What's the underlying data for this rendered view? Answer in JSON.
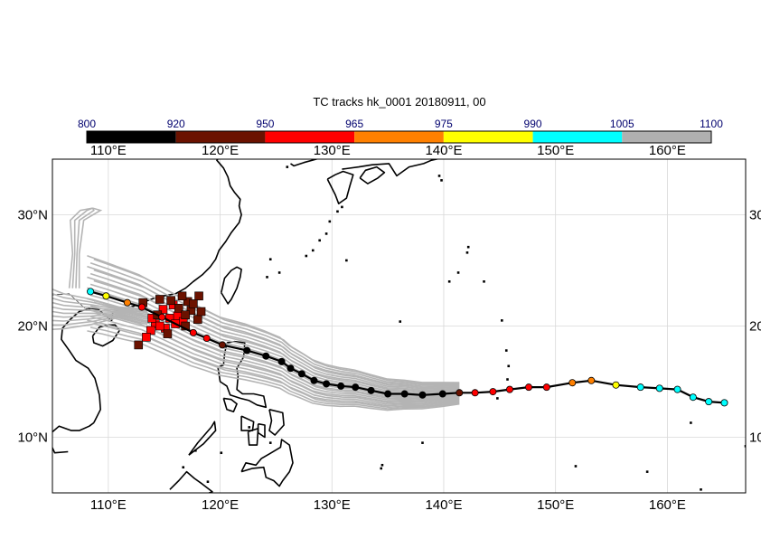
{
  "title": "TC tracks  hk_0001 20180911, 00",
  "colorbar": {
    "ticks": [
      "800",
      "920",
      "950",
      "965",
      "975",
      "990",
      "1005",
      "1100"
    ],
    "colors": [
      "#000000",
      "#6b1200",
      "#ff0000",
      "#ff8000",
      "#ffff00",
      "#00ffff",
      "#b0b0b0"
    ]
  },
  "axes": {
    "lon_labels": [
      "110°E",
      "120°E",
      "130°E",
      "140°E",
      "150°E",
      "160°E"
    ],
    "lat_labels_left": [
      "30°N",
      "20°N",
      "10°N"
    ],
    "lat_labels_right": [
      "30",
      "20",
      "10"
    ],
    "lon_range": [
      105,
      167
    ],
    "lat_range": [
      5,
      35
    ]
  },
  "ensemble_color": "#b4b4b4",
  "main_track": {
    "line_color": "#000000",
    "points": [
      {
        "lon": 165.1,
        "lat": 13.1,
        "c": "cyan"
      },
      {
        "lon": 163.7,
        "lat": 13.2,
        "c": "cyan"
      },
      {
        "lon": 162.3,
        "lat": 13.6,
        "c": "cyan"
      },
      {
        "lon": 160.9,
        "lat": 14.3,
        "c": "cyan"
      },
      {
        "lon": 159.3,
        "lat": 14.4,
        "c": "cyan"
      },
      {
        "lon": 157.6,
        "lat": 14.5,
        "c": "cyan"
      },
      {
        "lon": 155.4,
        "lat": 14.7,
        "c": "yellow"
      },
      {
        "lon": 153.2,
        "lat": 15.1,
        "c": "orange"
      },
      {
        "lon": 151.5,
        "lat": 14.9,
        "c": "orange"
      },
      {
        "lon": 149.2,
        "lat": 14.5,
        "c": "red"
      },
      {
        "lon": 147.6,
        "lat": 14.5,
        "c": "red"
      },
      {
        "lon": 145.9,
        "lat": 14.3,
        "c": "red"
      },
      {
        "lon": 144.4,
        "lat": 14.1,
        "c": "red"
      },
      {
        "lon": 142.8,
        "lat": 14.0,
        "c": "red"
      },
      {
        "lon": 141.4,
        "lat": 14.0,
        "c": "darkred"
      },
      {
        "lon": 139.9,
        "lat": 13.9,
        "c": "black"
      },
      {
        "lon": 138.1,
        "lat": 13.8,
        "c": "black"
      },
      {
        "lon": 136.5,
        "lat": 13.9,
        "c": "black"
      },
      {
        "lon": 135.0,
        "lat": 13.9,
        "c": "black"
      },
      {
        "lon": 133.5,
        "lat": 14.2,
        "c": "black"
      },
      {
        "lon": 132.1,
        "lat": 14.5,
        "c": "black"
      },
      {
        "lon": 130.8,
        "lat": 14.6,
        "c": "black"
      },
      {
        "lon": 129.5,
        "lat": 14.8,
        "c": "black"
      },
      {
        "lon": 128.4,
        "lat": 15.1,
        "c": "black"
      },
      {
        "lon": 127.3,
        "lat": 15.7,
        "c": "black"
      },
      {
        "lon": 126.3,
        "lat": 16.2,
        "c": "black"
      },
      {
        "lon": 125.5,
        "lat": 16.8,
        "c": "black"
      },
      {
        "lon": 124.1,
        "lat": 17.3,
        "c": "black"
      },
      {
        "lon": 122.4,
        "lat": 17.8,
        "c": "black"
      },
      {
        "lon": 120.2,
        "lat": 18.3,
        "c": "darkred"
      },
      {
        "lon": 118.8,
        "lat": 18.9,
        "c": "red"
      },
      {
        "lon": 117.6,
        "lat": 19.4,
        "c": "red"
      },
      {
        "lon": 114.8,
        "lat": 20.8,
        "c": "red"
      },
      {
        "lon": 113.0,
        "lat": 21.7,
        "c": "red"
      },
      {
        "lon": 111.7,
        "lat": 22.1,
        "c": "orange"
      },
      {
        "lon": 109.8,
        "lat": 22.7,
        "c": "yellow"
      },
      {
        "lon": 108.4,
        "lat": 23.1,
        "c": "cyan"
      }
    ]
  },
  "marker_colors": {
    "black": "#000000",
    "darkred": "#6b1200",
    "red": "#ff0000",
    "orange": "#ff8000",
    "yellow": "#ffff00",
    "cyan": "#00ffff",
    "gray": "#b0b0b0"
  },
  "squares": [
    {
      "lon": 115.5,
      "lat": 20.7,
      "c": "red"
    },
    {
      "lon": 116.2,
      "lat": 20.9,
      "c": "red"
    },
    {
      "lon": 114.9,
      "lat": 21.5,
      "c": "red"
    },
    {
      "lon": 115.8,
      "lat": 21.9,
      "c": "red"
    },
    {
      "lon": 116.7,
      "lat": 20.4,
      "c": "red"
    },
    {
      "lon": 114.2,
      "lat": 20.2,
      "c": "red"
    },
    {
      "lon": 113.8,
      "lat": 19.6,
      "c": "red"
    },
    {
      "lon": 113.4,
      "lat": 19.0,
      "c": "red"
    },
    {
      "lon": 113.9,
      "lat": 20.7,
      "c": "red"
    },
    {
      "lon": 115.1,
      "lat": 19.8,
      "c": "red"
    },
    {
      "lon": 116.0,
      "lat": 20.2,
      "c": "red"
    },
    {
      "lon": 114.6,
      "lat": 20.0,
      "c": "red"
    },
    {
      "lon": 117.1,
      "lat": 22.2,
      "c": "darkred"
    },
    {
      "lon": 118.1,
      "lat": 22.7,
      "c": "darkred"
    },
    {
      "lon": 116.6,
      "lat": 22.7,
      "c": "darkred"
    },
    {
      "lon": 117.4,
      "lat": 21.4,
      "c": "darkred"
    },
    {
      "lon": 118.0,
      "lat": 20.6,
      "c": "darkred"
    },
    {
      "lon": 116.9,
      "lat": 20.0,
      "c": "darkred"
    },
    {
      "lon": 115.6,
      "lat": 22.3,
      "c": "darkred"
    },
    {
      "lon": 114.6,
      "lat": 22.4,
      "c": "darkred"
    },
    {
      "lon": 116.3,
      "lat": 21.6,
      "c": "darkred"
    },
    {
      "lon": 115.3,
      "lat": 19.3,
      "c": "darkred"
    },
    {
      "lon": 114.4,
      "lat": 21.0,
      "c": "darkred"
    },
    {
      "lon": 117.6,
      "lat": 22.0,
      "c": "darkred"
    },
    {
      "lon": 112.7,
      "lat": 18.3,
      "c": "darkred"
    },
    {
      "lon": 116.9,
      "lat": 21.0,
      "c": "darkred"
    },
    {
      "lon": 113.1,
      "lat": 22.1,
      "c": "darkred"
    },
    {
      "lon": 118.3,
      "lat": 21.3,
      "c": "darkred"
    }
  ]
}
